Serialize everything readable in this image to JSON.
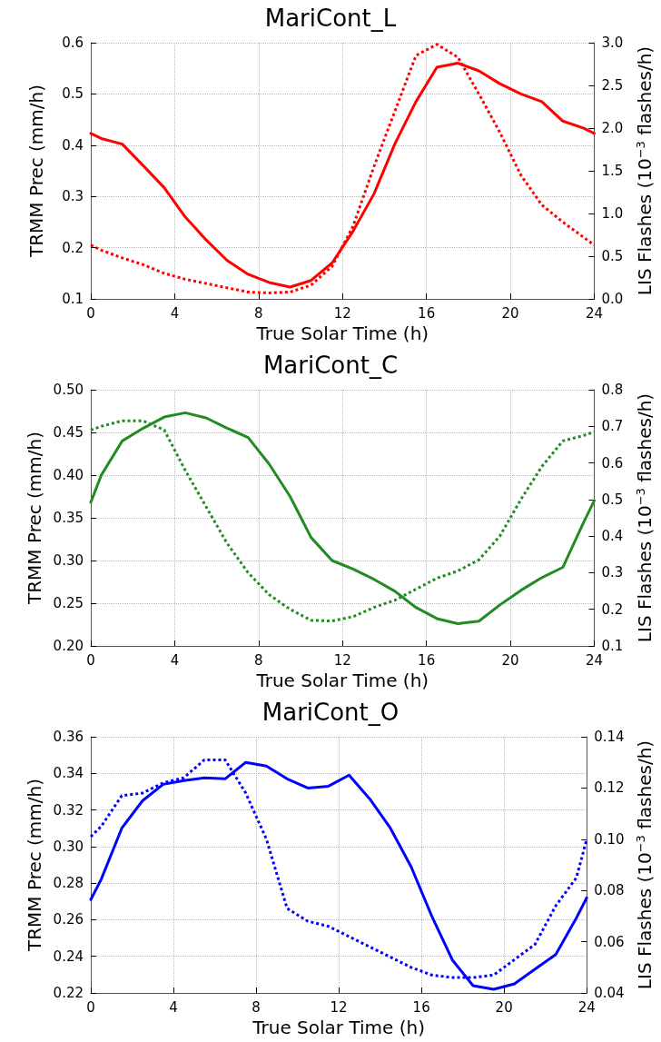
{
  "chart_data": [
    {
      "type": "line",
      "title": "MariCont_L",
      "xlabel": "True Solar Time (h)",
      "ylabel": "TRMM Prec (mm/h)",
      "y2label": "LIS Flashes (10$^{−3}$ flashes/h)",
      "x": [
        0,
        0.5,
        1.5,
        2.5,
        3.5,
        4.5,
        5.5,
        6.5,
        7.5,
        8.5,
        9.5,
        10.5,
        11.5,
        12.5,
        13.5,
        14.5,
        15.5,
        16.5,
        17.5,
        18.5,
        19.5,
        20.5,
        21.5,
        22.5,
        23.5,
        24
      ],
      "xlim": [
        0,
        24
      ],
      "xticks": [
        0,
        4,
        8,
        12,
        16,
        20,
        24
      ],
      "ylim": [
        0.1,
        0.6
      ],
      "yticks": [
        0.1,
        0.2,
        0.3,
        0.4,
        0.5,
        0.6
      ],
      "y2lim": [
        0,
        3
      ],
      "y2ticks": [
        {
          "value": 0,
          "label": "0.0"
        },
        0.5,
        {
          "value": 1,
          "label": "1.0"
        },
        1.5,
        {
          "value": 2,
          "label": "2.0"
        },
        2.5,
        {
          "value": 3,
          "label": "3.0"
        }
      ],
      "grid": true,
      "marker": "none",
      "series": [
        {
          "color": "#ff0000",
          "line_style": "solid",
          "values": [
            0.423,
            0.413,
            0.402,
            0.36,
            0.317,
            0.26,
            0.215,
            0.175,
            0.148,
            0.132,
            0.123,
            0.136,
            0.17,
            0.232,
            0.305,
            0.403,
            0.485,
            0.552,
            0.56,
            0.545,
            0.52,
            0.5,
            0.485,
            0.447,
            0.433,
            0.423
          ]
        },
        {
          "color": "#ff0000",
          "line_style": "dotted",
          "axis": "y2",
          "values": [
            0.63,
            0.57,
            0.48,
            0.4,
            0.3,
            0.23,
            0.18,
            0.13,
            0.08,
            0.07,
            0.08,
            0.16,
            0.38,
            0.85,
            1.55,
            2.2,
            2.85,
            2.98,
            2.83,
            2.4,
            1.95,
            1.45,
            1.1,
            0.9,
            0.72,
            0.63
          ]
        }
      ]
    },
    {
      "type": "line",
      "title": "MariCont_C",
      "xlabel": "True Solar Time (h)",
      "ylabel": "TRMM Prec (mm/h)",
      "y2label": "LIS Flashes (10$^{−3}$ flashes/h)",
      "x": [
        0,
        0.5,
        1.5,
        2.5,
        3.5,
        4.5,
        5.5,
        6.5,
        7.5,
        8.5,
        9.5,
        10.5,
        11.5,
        12.5,
        13.5,
        14.5,
        15.5,
        16.5,
        17.5,
        18.5,
        19.5,
        20.5,
        21.5,
        22.5,
        23.5,
        24
      ],
      "xlim": [
        0,
        24
      ],
      "xticks": [
        0,
        4,
        8,
        12,
        16,
        20,
        24
      ],
      "ylim": [
        0.2,
        0.5
      ],
      "yticks": [
        {
          "value": 0.2,
          "label": "0.20"
        },
        0.25,
        {
          "value": 0.3,
          "label": "0.30"
        },
        0.35,
        {
          "value": 0.4,
          "label": "0.40"
        },
        0.45,
        {
          "value": 0.5,
          "label": "0.50"
        }
      ],
      "y2lim": [
        0.1,
        0.8
      ],
      "y2ticks": [
        0.1,
        0.2,
        0.3,
        0.4,
        0.5,
        0.6,
        0.7,
        0.8
      ],
      "grid": true,
      "marker": "none",
      "series": [
        {
          "color": "#228b22",
          "line_style": "solid",
          "values": [
            0.368,
            0.4,
            0.44,
            0.455,
            0.468,
            0.473,
            0.467,
            0.455,
            0.444,
            0.413,
            0.375,
            0.327,
            0.3,
            0.29,
            0.278,
            0.264,
            0.245,
            0.232,
            0.226,
            0.229,
            0.248,
            0.265,
            0.28,
            0.292,
            0.345,
            0.37
          ]
        },
        {
          "color": "#228b22",
          "line_style": "dotted",
          "axis": "y2",
          "values": [
            0.69,
            0.7,
            0.715,
            0.715,
            0.69,
            0.58,
            0.48,
            0.38,
            0.3,
            0.24,
            0.2,
            0.17,
            0.168,
            0.18,
            0.205,
            0.225,
            0.255,
            0.285,
            0.305,
            0.335,
            0.4,
            0.5,
            0.59,
            0.66,
            0.675,
            0.685
          ]
        }
      ]
    },
    {
      "type": "line",
      "title": "MariCont_O",
      "xlabel": "True Solar Time (h)",
      "ylabel": "TRMM Prec (mm/h)",
      "y2label": "LIS Flashes (10$^{−3}$ flashes/h)",
      "x": [
        0,
        0.5,
        1.5,
        2.5,
        3.5,
        4.5,
        5.5,
        6.5,
        7.5,
        8.5,
        9.5,
        10.5,
        11.5,
        12.5,
        13.5,
        14.5,
        15.5,
        16.5,
        17.5,
        18.5,
        19.5,
        20.5,
        21.5,
        22.5,
        23.5,
        24
      ],
      "xlim": [
        0,
        24
      ],
      "xticks": [
        0,
        4,
        8,
        12,
        16,
        20,
        24
      ],
      "ylim": [
        0.22,
        0.36
      ],
      "yticks": [
        0.22,
        0.24,
        0.26,
        0.28,
        {
          "value": 0.3,
          "label": "0.30"
        },
        0.32,
        0.34,
        0.36
      ],
      "y2lim": [
        0.04,
        0.14
      ],
      "y2ticks": [
        0.04,
        0.06,
        0.08,
        {
          "value": 0.1,
          "label": "0.10"
        },
        0.12,
        0.14
      ],
      "grid": true,
      "marker": "none",
      "series": [
        {
          "color": "#0000ff",
          "line_style": "solid",
          "values": [
            0.271,
            0.282,
            0.31,
            0.325,
            0.334,
            0.336,
            0.3375,
            0.337,
            0.346,
            0.344,
            0.337,
            0.332,
            0.333,
            0.339,
            0.326,
            0.31,
            0.289,
            0.262,
            0.238,
            0.224,
            0.222,
            0.225,
            0.233,
            0.241,
            0.261,
            0.272
          ]
        },
        {
          "color": "#0000ff",
          "line_style": "dotted",
          "axis": "y2",
          "values": [
            0.101,
            0.105,
            0.117,
            0.118,
            0.122,
            0.124,
            0.131,
            0.131,
            0.118,
            0.1,
            0.073,
            0.068,
            0.066,
            0.062,
            0.058,
            0.054,
            0.05,
            0.047,
            0.046,
            0.046,
            0.047,
            0.053,
            0.059,
            0.074,
            0.085,
            0.1
          ]
        }
      ]
    }
  ]
}
